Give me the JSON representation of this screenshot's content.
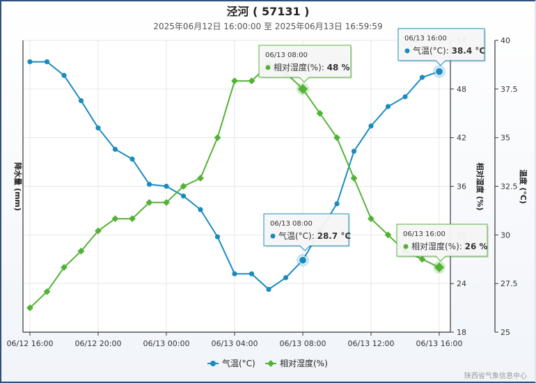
{
  "chart_data": {
    "type": "line",
    "title": "泾河 ( 57131 )",
    "subtitle": "2025年06月12日 16:00:00 至 2025年06月13日 16:59:59",
    "x": [
      "06/12 16:00",
      "06/12 17:00",
      "06/12 18:00",
      "06/12 19:00",
      "06/12 20:00",
      "06/12 21:00",
      "06/12 22:00",
      "06/12 23:00",
      "06/13 00:00",
      "06/13 01:00",
      "06/13 02:00",
      "06/13 03:00",
      "06/13 04:00",
      "06/13 05:00",
      "06/13 06:00",
      "06/13 07:00",
      "06/13 08:00",
      "06/13 09:00",
      "06/13 10:00",
      "06/13 11:00",
      "06/13 12:00",
      "06/13 13:00",
      "06/13 14:00",
      "06/13 15:00",
      "06/13 16:00"
    ],
    "x_ticks": [
      "06/12 16:00",
      "06/12 20:00",
      "06/13 00:00",
      "06/13 04:00",
      "06/13 08:00",
      "06/13 12:00",
      "06/13 16:00"
    ],
    "series": [
      {
        "name": "气温(°C)",
        "unit": "°C",
        "axis": "temperature",
        "color": "#1a8bbf",
        "values": [
          38.9,
          38.9,
          38.2,
          36.9,
          35.5,
          34.4,
          33.9,
          32.6,
          32.5,
          32.0,
          31.3,
          29.9,
          28.0,
          28.0,
          27.2,
          27.8,
          28.7,
          30.2,
          31.6,
          34.3,
          35.6,
          36.6,
          37.1,
          38.1,
          38.4
        ]
      },
      {
        "name": "相对湿度(%)",
        "unit": "%",
        "axis": "humidity",
        "color": "#53b236",
        "values": [
          21,
          23,
          26,
          28,
          30.5,
          32,
          32,
          34,
          34,
          36,
          37,
          42,
          49,
          49,
          51,
          50,
          48,
          45,
          42,
          37,
          32,
          30,
          28,
          27,
          26
        ]
      }
    ],
    "axes": {
      "left": {
        "label": "降水量 (mm)"
      },
      "humidity": {
        "label": "相对湿度 (%)",
        "ticks": [
          "18",
          "24",
          "30",
          "36",
          "42",
          "48",
          "54"
        ],
        "range": [
          18,
          54
        ]
      },
      "temperature": {
        "label": "温度 (°C)",
        "ticks": [
          "25",
          "27.5",
          "30",
          "32.5",
          "35",
          "37.5",
          "40"
        ],
        "range": [
          25,
          40
        ]
      }
    },
    "grid": true,
    "legend": {
      "position": "bottom-center",
      "items": [
        "气温(°C)",
        "相对湿度(%)"
      ]
    },
    "tooltips": [
      {
        "time": "06/13 08:00",
        "series": "相对湿度(%)",
        "value": "48 %"
      },
      {
        "time": "06/13 16:00",
        "series": "气温(°C)",
        "value": "38.4 °C"
      },
      {
        "time": "06/13 08:00",
        "series": "气温(°C)",
        "value": "28.7 °C"
      },
      {
        "time": "06/13 16:00",
        "series": "相对湿度(%)",
        "value": "26 %"
      }
    ],
    "credits": "陕西省气象信息中心"
  }
}
